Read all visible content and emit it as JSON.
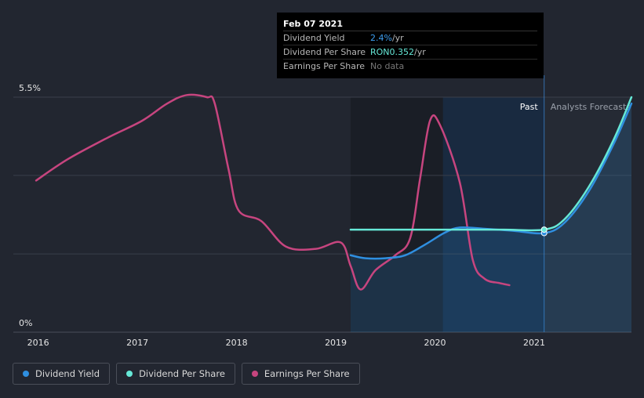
{
  "tooltip": {
    "date": "Feb 07 2021",
    "rows": [
      {
        "label": "Dividend Yield",
        "value": "2.4%",
        "unit": " /yr"
      },
      {
        "label": "Dividend Per Share",
        "value": "RON0.352",
        "unit": " /yr"
      },
      {
        "label": "Earnings Per Share",
        "value": "No data"
      }
    ]
  },
  "colors": {
    "dividend_yield": "#2f8fe0",
    "dividend_per_share": "#66e8d7",
    "earnings_per_share": "#c7457f",
    "background": "#222630"
  },
  "chart_data": {
    "type": "line",
    "x_ticks": [
      "2016",
      "2017",
      "2018",
      "2019",
      "2020",
      "2021"
    ],
    "y_tick_labels": [
      "5.5%",
      "0%"
    ],
    "ylim": [
      0,
      5.5
    ],
    "xlim": [
      2015.75,
      2021.98
    ],
    "past_label": "Past",
    "forecast_label": "Analysts Forecasts",
    "past_end_x": 2021.1,
    "grid": true,
    "series": [
      {
        "name": "Dividend Yield",
        "key": "dividend_yield",
        "points": [
          [
            2019.15,
            1.8
          ],
          [
            2019.3,
            1.73
          ],
          [
            2019.5,
            1.73
          ],
          [
            2019.7,
            1.8
          ],
          [
            2019.9,
            2.05
          ],
          [
            2020.1,
            2.33
          ],
          [
            2020.25,
            2.45
          ],
          [
            2020.5,
            2.42
          ],
          [
            2020.8,
            2.37
          ],
          [
            2021.1,
            2.32
          ],
          [
            2021.3,
            2.55
          ],
          [
            2021.55,
            3.3
          ],
          [
            2021.8,
            4.4
          ],
          [
            2021.98,
            5.35
          ]
        ]
      },
      {
        "name": "Dividend Per Share",
        "key": "dividend_per_share",
        "points": [
          [
            2019.15,
            2.4
          ],
          [
            2019.5,
            2.4
          ],
          [
            2019.9,
            2.4
          ],
          [
            2020.3,
            2.4
          ],
          [
            2020.7,
            2.4
          ],
          [
            2021.1,
            2.4
          ],
          [
            2021.3,
            2.63
          ],
          [
            2021.55,
            3.4
          ],
          [
            2021.8,
            4.5
          ],
          [
            2021.98,
            5.5
          ]
        ]
      },
      {
        "name": "Earnings Per Share",
        "key": "earnings_per_share",
        "points": [
          [
            2015.98,
            3.55
          ],
          [
            2016.3,
            4.05
          ],
          [
            2016.7,
            4.55
          ],
          [
            2017.05,
            4.95
          ],
          [
            2017.3,
            5.35
          ],
          [
            2017.5,
            5.55
          ],
          [
            2017.7,
            5.5
          ],
          [
            2017.78,
            5.35
          ],
          [
            2017.92,
            3.8
          ],
          [
            2018.02,
            2.85
          ],
          [
            2018.25,
            2.6
          ],
          [
            2018.5,
            2.0
          ],
          [
            2018.8,
            1.95
          ],
          [
            2019.05,
            2.1
          ],
          [
            2019.15,
            1.55
          ],
          [
            2019.25,
            1.0
          ],
          [
            2019.4,
            1.45
          ],
          [
            2019.6,
            1.8
          ],
          [
            2019.75,
            2.2
          ],
          [
            2019.85,
            3.6
          ],
          [
            2019.95,
            4.95
          ],
          [
            2020.05,
            4.85
          ],
          [
            2020.25,
            3.5
          ],
          [
            2020.38,
            1.7
          ],
          [
            2020.5,
            1.25
          ],
          [
            2020.65,
            1.15
          ],
          [
            2020.75,
            1.1
          ]
        ]
      }
    ],
    "markers": [
      {
        "series": "dividend_yield",
        "x": 2021.1,
        "y": 2.32
      },
      {
        "series": "dividend_per_share",
        "x": 2021.1,
        "y": 2.4
      }
    ]
  },
  "legend": [
    {
      "label": "Dividend Yield",
      "key": "dividend_yield"
    },
    {
      "label": "Dividend Per Share",
      "key": "dividend_per_share"
    },
    {
      "label": "Earnings Per Share",
      "key": "earnings_per_share"
    }
  ]
}
